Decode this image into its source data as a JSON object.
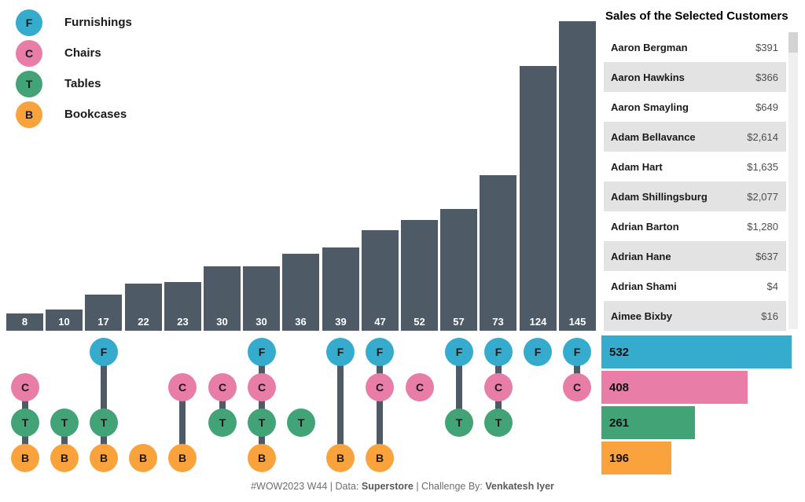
{
  "legend": {
    "items": [
      {
        "code": "F",
        "label": "Furnishings",
        "color": "#35ABCE"
      },
      {
        "code": "C",
        "label": "Chairs",
        "color": "#E87DA8"
      },
      {
        "code": "T",
        "label": "Tables",
        "color": "#42A377"
      },
      {
        "code": "B",
        "label": "Bookcases",
        "color": "#FAA23C"
      }
    ]
  },
  "chart_data": [
    {
      "type": "bar",
      "title": "UpSet plot: customer-count per product-category combination",
      "categories": [
        [
          "C",
          "T",
          "B"
        ],
        [
          "T",
          "B"
        ],
        [
          "F",
          "T",
          "B"
        ],
        [
          "B"
        ],
        [
          "C",
          "B"
        ],
        [
          "C",
          "T"
        ],
        [
          "F",
          "C",
          "T",
          "B"
        ],
        [
          "T"
        ],
        [
          "F",
          "B"
        ],
        [
          "F",
          "C",
          "B"
        ],
        [
          "C"
        ],
        [
          "F",
          "T"
        ],
        [
          "F",
          "C",
          "T"
        ],
        [
          "F"
        ],
        [
          "F",
          "C"
        ]
      ],
      "values": [
        8,
        10,
        17,
        22,
        23,
        30,
        30,
        36,
        39,
        47,
        52,
        57,
        73,
        124,
        145
      ],
      "bar_color": "#4E5B66",
      "ylim": [
        0,
        145
      ],
      "grid": false,
      "data_labels": "inside-bottom"
    },
    {
      "type": "bar",
      "title": "Set sizes per category",
      "orientation": "horizontal",
      "categories": [
        "F",
        "C",
        "T",
        "B"
      ],
      "values": [
        532,
        408,
        261,
        196
      ],
      "colors": [
        "#35ABCE",
        "#E87DA8",
        "#42A377",
        "#FAA23C"
      ],
      "xlim": [
        0,
        532
      ],
      "data_labels": "inside-left"
    }
  ],
  "customer_panel": {
    "title": "Sales of the Selected Customers",
    "rows": [
      {
        "name": "Aaron Bergman",
        "sales": "$391"
      },
      {
        "name": "Aaron Hawkins",
        "sales": "$366"
      },
      {
        "name": "Aaron Smayling",
        "sales": "$649"
      },
      {
        "name": "Adam Bellavance",
        "sales": "$2,614"
      },
      {
        "name": "Adam Hart",
        "sales": "$1,635"
      },
      {
        "name": "Adam Shillingsburg",
        "sales": "$2,077"
      },
      {
        "name": "Adrian Barton",
        "sales": "$1,280"
      },
      {
        "name": "Adrian Hane",
        "sales": "$637"
      },
      {
        "name": "Adrian Shami",
        "sales": "$4"
      },
      {
        "name": "Aimee Bixby",
        "sales": "$16"
      }
    ]
  },
  "caption": {
    "segments": [
      {
        "text": "#WOW2023 W44 | Data: ",
        "bold": false
      },
      {
        "text": "Superstore",
        "bold": true
      },
      {
        "text": " | Challenge By: ",
        "bold": false
      },
      {
        "text": "Venkatesh Iyer",
        "bold": true
      }
    ]
  },
  "colors": {
    "bar_slate": "#4E5B66",
    "row_alt": "#E3E3E3",
    "furnishings": "#35ABCE",
    "chairs": "#E87DA8",
    "tables": "#42A377",
    "bookcases": "#FAA23C"
  }
}
